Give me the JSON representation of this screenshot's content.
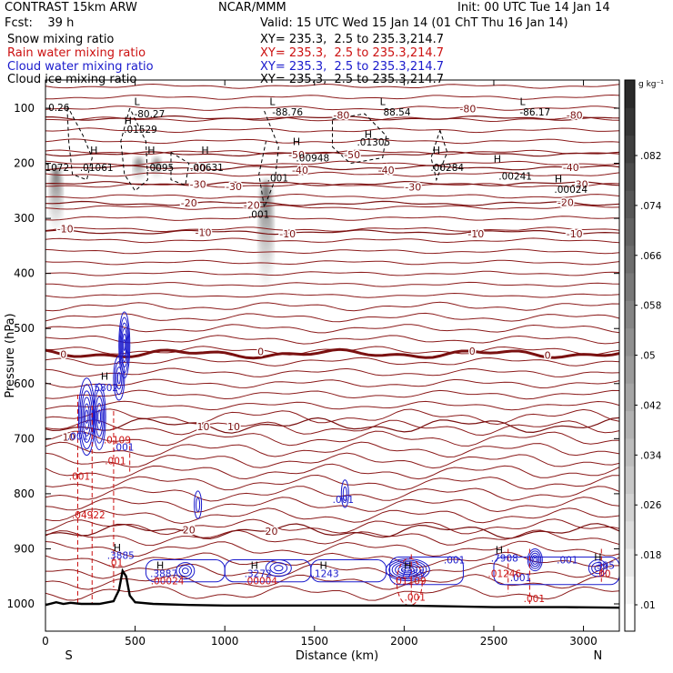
{
  "header": {
    "model": "CONTRAST 15km ARW",
    "org": "NCAR/MMM",
    "init": "Init: 00 UTC Tue 14 Jan 14",
    "fcst": "Fcst:    39 h",
    "valid": "Valid: 15 UTC Wed 15 Jan 14 (01 ChT Thu 16 Jan 14)",
    "fields": [
      {
        "name": "Snow mixing ratio",
        "xy": "XY= 235.3,  2.5 to 235.3,214.7",
        "color": "#000000"
      },
      {
        "name": "Rain water mixing ratio",
        "xy": "XY= 235.3,  2.5 to 235.3,214.7",
        "color": "#cc1111"
      },
      {
        "name": "Cloud water mixing ratio",
        "xy": "XY= 235.3,  2.5 to 235.3,214.7",
        "color": "#1a1acc"
      },
      {
        "name": "Cloud ice mixing ratio",
        "xy": "XY= 235.3,  2.5 to 235.3,214.7",
        "color": "#000000"
      }
    ]
  },
  "chart_data": {
    "type": "contour",
    "xlabel": "Distance (km)",
    "ylabel": "Pressure (hPa)",
    "x_ticks": [
      0,
      500,
      1000,
      1500,
      2000,
      2500,
      3000
    ],
    "xlim": [
      0,
      3200
    ],
    "y_ticks": [
      100,
      200,
      300,
      400,
      500,
      600,
      700,
      800,
      900,
      1000
    ],
    "ylim": [
      1050,
      50
    ],
    "x_end_labels": {
      "left": "S",
      "right": "N"
    },
    "colorbar": {
      "units": "g kg⁻¹",
      "levels": [
        0.01,
        0.018,
        0.026,
        0.034,
        0.042,
        0.05,
        0.058,
        0.066,
        0.074,
        0.082
      ],
      "labels": [
        ".01",
        ".018",
        ".026",
        ".034",
        ".042",
        ".05",
        ".058",
        ".066",
        ".074",
        ".082"
      ],
      "color_low": "#ffffff",
      "color_high": "#2a2a2a"
    },
    "temperature_isotherms": [
      {
        "t": -80,
        "p": 118
      },
      {
        "t": -50,
        "p": 183
      },
      {
        "t": -40,
        "p": 208
      },
      {
        "t": -30,
        "p": 237
      },
      {
        "t": -20,
        "p": 273
      },
      {
        "t": -10,
        "p": 325
      },
      {
        "t": 0,
        "p": 546
      },
      {
        "t": 10,
        "p": 676
      },
      {
        "t": 20,
        "p": 868
      }
    ],
    "isotherm_labels": [
      {
        "text": "-80",
        "x": 2355,
        "p": 101
      },
      {
        "text": "-80",
        "x": 1650,
        "p": 112
      },
      {
        "text": "-80",
        "x": 2950,
        "p": 112
      },
      {
        "text": "-50",
        "x": 1400,
        "p": 184
      },
      {
        "text": "-50",
        "x": 1710,
        "p": 184
      },
      {
        "text": "-40",
        "x": 850,
        "p": 208
      },
      {
        "text": "-40",
        "x": 1420,
        "p": 212
      },
      {
        "text": "-40",
        "x": 1900,
        "p": 212
      },
      {
        "text": "-40",
        "x": 2930,
        "p": 207
      },
      {
        "text": "-30",
        "x": 850,
        "p": 238
      },
      {
        "text": "-30",
        "x": 1050,
        "p": 242
      },
      {
        "text": "-30",
        "x": 2050,
        "p": 243
      },
      {
        "text": "-30",
        "x": 2980,
        "p": 238
      },
      {
        "text": "-20",
        "x": 800,
        "p": 272
      },
      {
        "text": "-20",
        "x": 1150,
        "p": 276
      },
      {
        "text": "-20",
        "x": 2900,
        "p": 271
      },
      {
        "text": "-10",
        "x": 110,
        "p": 319
      },
      {
        "text": "-10",
        "x": 880,
        "p": 325
      },
      {
        "text": "-10",
        "x": 1350,
        "p": 328
      },
      {
        "text": "-10",
        "x": 2400,
        "p": 328
      },
      {
        "text": "-10",
        "x": 2950,
        "p": 328
      },
      {
        "text": "0",
        "x": 100,
        "p": 547
      },
      {
        "text": "0",
        "x": 1200,
        "p": 542
      },
      {
        "text": "0",
        "x": 2380,
        "p": 541
      },
      {
        "text": "0",
        "x": 2800,
        "p": 548
      },
      {
        "text": "10",
        "x": 130,
        "p": 697
      },
      {
        "text": "10",
        "x": 880,
        "p": 678
      },
      {
        "text": "10",
        "x": 1050,
        "p": 678
      },
      {
        "text": "20",
        "x": 800,
        "p": 865
      },
      {
        "text": "20",
        "x": 1260,
        "p": 868
      }
    ],
    "snow_max_labels": [
      {
        "text": "0.26",
        "x": 75,
        "p": 98
      },
      {
        "text": ".01529",
        "x": 530,
        "p": 138
      },
      {
        "text": "1072",
        "x": 65,
        "p": 207
      },
      {
        "text": ".01061",
        "x": 285,
        "p": 207
      },
      {
        "text": ".0095",
        "x": 640,
        "p": 207
      },
      {
        "text": ".00631",
        "x": 900,
        "p": 207
      },
      {
        "text": ".00948",
        "x": 1490,
        "p": 190
      },
      {
        "text": ".01305",
        "x": 1830,
        "p": 161
      },
      {
        "text": ".00284",
        "x": 2240,
        "p": 207
      },
      {
        "text": ".00241",
        "x": 2620,
        "p": 223
      },
      {
        "text": ".00024",
        "x": 2930,
        "p": 247
      },
      {
        "text": ".001",
        "x": 1295,
        "p": 226
      },
      {
        "text": ".001",
        "x": 1190,
        "p": 292
      }
    ],
    "ice_min_labels": [
      {
        "text": "-80.27",
        "x": 580,
        "p": 110
      },
      {
        "text": "-88.76",
        "x": 1350,
        "p": 107
      },
      {
        "text": "88.54",
        "x": 1960,
        "p": 107
      },
      {
        "text": "-86.17",
        "x": 2730,
        "p": 107
      }
    ],
    "hl_markers": [
      {
        "text": "L",
        "x": 510,
        "p": 88
      },
      {
        "text": "L",
        "x": 1265,
        "p": 88
      },
      {
        "text": "L",
        "x": 1880,
        "p": 88
      },
      {
        "text": "L",
        "x": 2660,
        "p": 88
      },
      {
        "text": "H",
        "x": 460,
        "p": 122
      },
      {
        "text": "H",
        "x": 1800,
        "p": 147
      },
      {
        "text": "H",
        "x": 270,
        "p": 176
      },
      {
        "text": "H",
        "x": 590,
        "p": 176
      },
      {
        "text": "H",
        "x": 890,
        "p": 176
      },
      {
        "text": "H",
        "x": 1400,
        "p": 160
      },
      {
        "text": "H",
        "x": 2180,
        "p": 176
      },
      {
        "text": "H",
        "x": 2520,
        "p": 192
      },
      {
        "text": "H",
        "x": 2860,
        "p": 228
      },
      {
        "text": "H",
        "x": 330,
        "p": 586
      },
      {
        "text": "H",
        "x": 400,
        "p": 898
      },
      {
        "text": "H",
        "x": 640,
        "p": 930
      },
      {
        "text": "H",
        "x": 1165,
        "p": 930
      },
      {
        "text": "H",
        "x": 1550,
        "p": 930
      },
      {
        "text": "H",
        "x": 2020,
        "p": 930
      },
      {
        "text": "H",
        "x": 2530,
        "p": 902
      },
      {
        "text": "H",
        "x": 3080,
        "p": 915
      }
    ],
    "cloud_water_labels": [
      {
        "text": ".5802",
        "x": 330,
        "p": 607
      },
      {
        "text": ".001",
        "x": 180,
        "p": 695
      },
      {
        "text": ".001",
        "x": 435,
        "p": 715
      },
      {
        "text": ".3885",
        "x": 420,
        "p": 912
      },
      {
        "text": ".3887",
        "x": 660,
        "p": 945
      },
      {
        "text": ".3272",
        "x": 1185,
        "p": 945
      },
      {
        "text": ".1243",
        "x": 1560,
        "p": 945
      },
      {
        "text": ".7755",
        "x": 2040,
        "p": 945
      },
      {
        "text": ".001",
        "x": 1660,
        "p": 810
      },
      {
        "text": ".001",
        "x": 2280,
        "p": 920
      },
      {
        "text": ".001",
        "x": 2910,
        "p": 920
      },
      {
        "text": ".7908",
        "x": 2560,
        "p": 917
      },
      {
        "text": ".001",
        "x": 2650,
        "p": 952
      },
      {
        "text": ".395",
        "x": 3115,
        "p": 930
      }
    ],
    "rain_labels": [
      {
        "text": ".04922",
        "x": 240,
        "p": 838
      },
      {
        "text": ".0109",
        "x": 400,
        "p": 702
      },
      {
        "text": ".001",
        "x": 390,
        "p": 740
      },
      {
        "text": ".001",
        "x": 190,
        "p": 768
      },
      {
        "text": ".01",
        "x": 390,
        "p": 925
      },
      {
        "text": ".00024",
        "x": 680,
        "p": 958
      },
      {
        "text": ".00004",
        "x": 1200,
        "p": 958
      },
      {
        "text": ".01109",
        "x": 2030,
        "p": 958
      },
      {
        "text": ".001",
        "x": 2060,
        "p": 988
      },
      {
        "text": ".01246",
        "x": 2560,
        "p": 945
      },
      {
        "text": ".001",
        "x": 2725,
        "p": 990
      },
      {
        "text": ".00",
        "x": 3110,
        "p": 945
      }
    ],
    "surface_pressure": [
      [
        0,
        1002
      ],
      [
        60,
        997
      ],
      [
        100,
        1000
      ],
      [
        140,
        998
      ],
      [
        200,
        1000
      ],
      [
        300,
        1000
      ],
      [
        380,
        995
      ],
      [
        410,
        975
      ],
      [
        430,
        940
      ],
      [
        450,
        950
      ],
      [
        470,
        985
      ],
      [
        500,
        997
      ],
      [
        600,
        1000
      ],
      [
        800,
        1002
      ],
      [
        1000,
        1003
      ],
      [
        1500,
        1003
      ],
      [
        2000,
        1003
      ],
      [
        2500,
        1006
      ],
      [
        2900,
        1006
      ],
      [
        3200,
        1007
      ]
    ]
  }
}
